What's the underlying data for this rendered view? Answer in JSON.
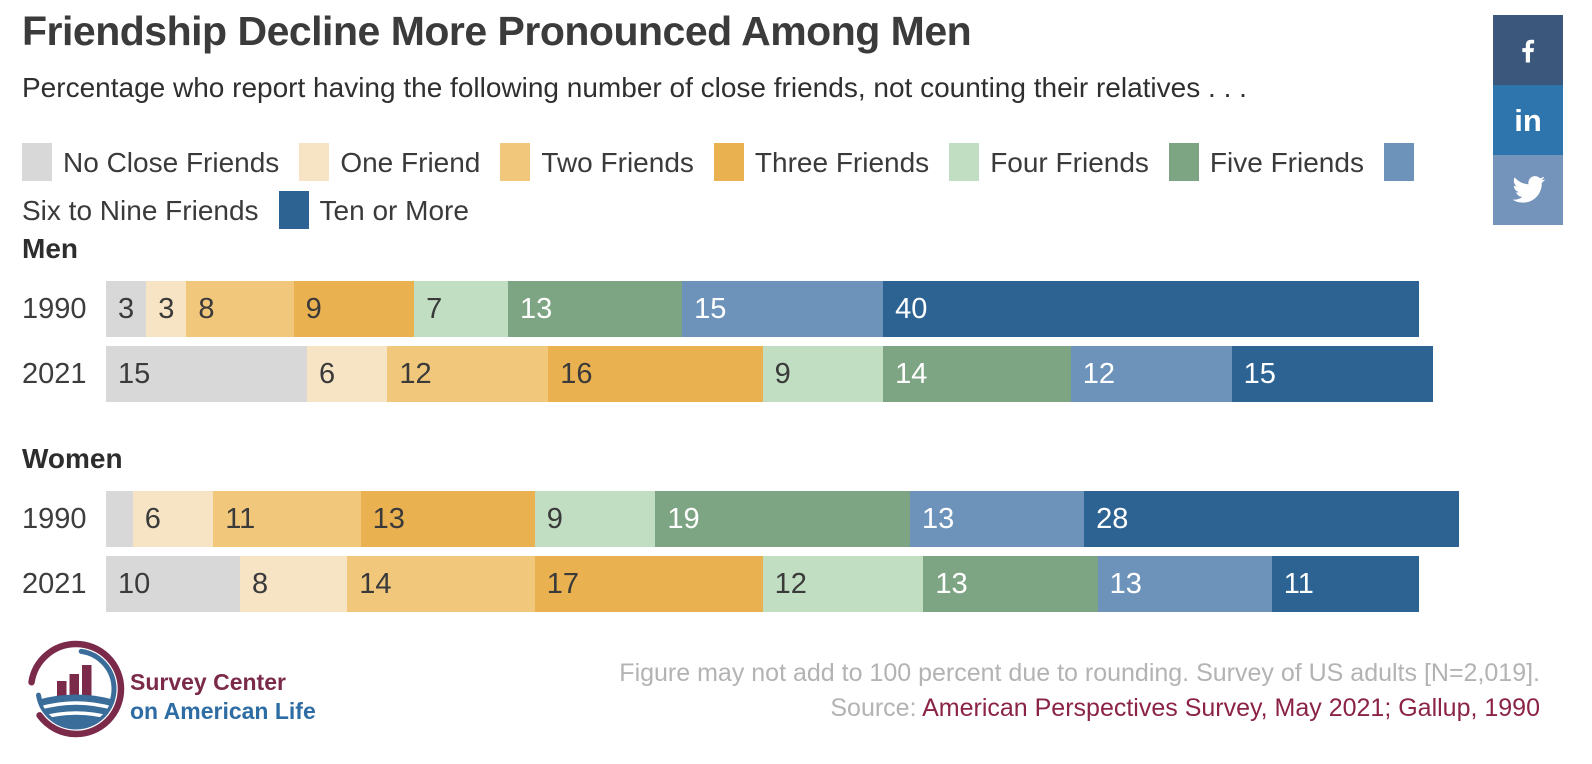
{
  "header": {
    "title": "Friendship Decline More Pronounced Among Men",
    "subtitle": "Percentage who report having the following number of close friends, not counting their relatives . . ."
  },
  "social": [
    {
      "name": "facebook",
      "color": "#3b577b"
    },
    {
      "name": "linkedin",
      "color": "#2e74ad",
      "glyph": "in"
    },
    {
      "name": "twitter",
      "color": "#7594bb"
    }
  ],
  "chart_data": {
    "type": "bar",
    "variant": "horizontal-stacked",
    "unit": "percent",
    "xlim": [
      0,
      100
    ],
    "title": "Friendship Decline More Pronounced Among Men",
    "categories": [
      "No Close Friends",
      "One Friend",
      "Two Friends",
      "Three Friends",
      "Four Friends",
      "Five Friends",
      "Six to Nine Friends",
      "Ten or More"
    ],
    "colors": [
      "#d8d8d8",
      "#f6e4c4",
      "#f1c77c",
      "#eab150",
      "#c1dec3",
      "#7ea583",
      "#6e93bb",
      "#2d6392"
    ],
    "label_text_colors": [
      "#3a3a3a",
      "#3a3a3a",
      "#3a3a3a",
      "#3a3a3a",
      "#3a3a3a",
      "#ffffff",
      "#ffffff",
      "#ffffff"
    ],
    "groups": [
      {
        "name": "Men",
        "rows": [
          {
            "year": "1990",
            "values": [
              3,
              3,
              8,
              9,
              7,
              13,
              15,
              40
            ],
            "labels": [
              "3",
              "3",
              "8",
              "9",
              "7",
              "13",
              "15",
              "40"
            ]
          },
          {
            "year": "2021",
            "values": [
              15,
              6,
              12,
              16,
              9,
              14,
              12,
              15
            ],
            "labels": [
              "15",
              "6",
              "12",
              "16",
              "9",
              "14",
              "12",
              "15"
            ]
          }
        ]
      },
      {
        "name": "Women",
        "rows": [
          {
            "year": "1990",
            "values": [
              2,
              6,
              11,
              13,
              9,
              19,
              13,
              28
            ],
            "labels": [
              "",
              "6",
              "11",
              "13",
              "9",
              "19",
              "13",
              "28"
            ]
          },
          {
            "year": "2021",
            "values": [
              10,
              8,
              14,
              17,
              12,
              13,
              13,
              11
            ],
            "labels": [
              "10",
              "8",
              "14",
              "17",
              "12",
              "13",
              "13",
              "11"
            ]
          }
        ]
      }
    ]
  },
  "footer": {
    "note": "Figure may not add to 100 percent due to rounding. Survey of US adults [N=2,019].",
    "source_prefix": "Source: ",
    "source": "American Perspectives Survey, May 2021; Gallup, 1990",
    "logo_line1": "Survey Center",
    "logo_line2": "on American Life"
  }
}
